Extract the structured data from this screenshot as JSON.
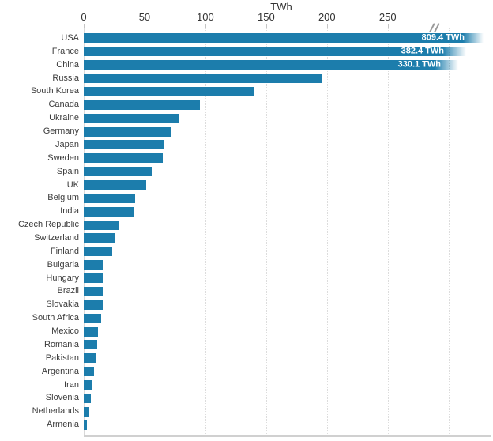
{
  "chart_data": {
    "type": "bar",
    "orientation": "horizontal",
    "title": "TWh",
    "unit": "TWh",
    "x_axis": {
      "tick_labels": [
        "0",
        "50",
        "100",
        "150",
        "200",
        "250"
      ],
      "tick_values": [
        0,
        50,
        100,
        150,
        200,
        250
      ],
      "gridline_values": [
        50,
        100,
        150,
        200,
        250,
        300
      ],
      "axis_break_after": 250,
      "grid": "dotted-vertical"
    },
    "colors": {
      "bar": "#1c7dac",
      "value_label_text": "#ffffff"
    },
    "bars": [
      {
        "country": "USA",
        "value": 809.4,
        "value_label": "809.4 TWh",
        "cut_off": true
      },
      {
        "country": "France",
        "value": 382.4,
        "value_label": "382.4 TWh",
        "cut_off": true
      },
      {
        "country": "China",
        "value": 330.1,
        "value_label": "330.1 TWh",
        "cut_off": true
      },
      {
        "country": "Russia",
        "value": 195.5
      },
      {
        "country": "South Korea",
        "value": 138.8
      },
      {
        "country": "Canada",
        "value": 94.9
      },
      {
        "country": "Ukraine",
        "value": 78.1
      },
      {
        "country": "Germany",
        "value": 71.1
      },
      {
        "country": "Japan",
        "value": 65.6
      },
      {
        "country": "Sweden",
        "value": 64.4
      },
      {
        "country": "Spain",
        "value": 55.9
      },
      {
        "country": "UK",
        "value": 51.0
      },
      {
        "country": "Belgium",
        "value": 41.4
      },
      {
        "country": "India",
        "value": 40.7
      },
      {
        "country": "Czech Republic",
        "value": 28.6
      },
      {
        "country": "Switzerland",
        "value": 25.4
      },
      {
        "country": "Finland",
        "value": 22.9
      },
      {
        "country": "Bulgaria",
        "value": 15.9
      },
      {
        "country": "Hungary",
        "value": 15.4
      },
      {
        "country": "Brazil",
        "value": 15.2
      },
      {
        "country": "Slovakia",
        "value": 15.1
      },
      {
        "country": "South Africa",
        "value": 13.6
      },
      {
        "country": "Mexico",
        "value": 10.9
      },
      {
        "country": "Romania",
        "value": 10.4
      },
      {
        "country": "Pakistan",
        "value": 9.1
      },
      {
        "country": "Argentina",
        "value": 7.9
      },
      {
        "country": "Iran",
        "value": 5.9
      },
      {
        "country": "Slovenia",
        "value": 5.5
      },
      {
        "country": "Netherlands",
        "value": 3.7
      },
      {
        "country": "Armenia",
        "value": 2.0
      }
    ]
  }
}
